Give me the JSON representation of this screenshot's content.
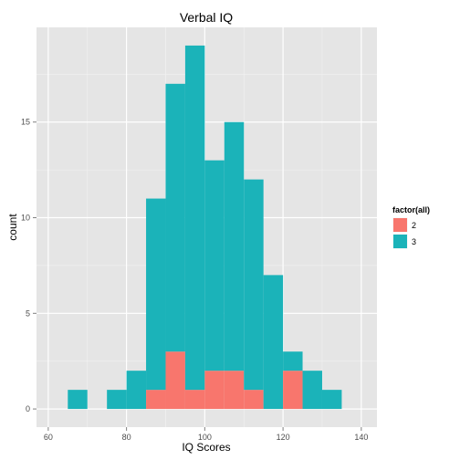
{
  "chart_data": {
    "type": "bar",
    "title": "Verbal IQ",
    "xlabel": "IQ Scores",
    "ylabel": "count",
    "xlim": [
      57,
      144
    ],
    "ylim": [
      -0.95,
      19.95
    ],
    "x_ticks": [
      60,
      80,
      100,
      120,
      140
    ],
    "y_ticks": [
      0,
      5,
      10,
      15
    ],
    "bin_width": 5,
    "bin_starts": [
      65,
      70,
      75,
      80,
      85,
      90,
      95,
      100,
      105,
      110,
      115,
      120,
      125,
      130
    ],
    "stacked": true,
    "grid": true,
    "legend": {
      "title": "factor(all)",
      "position": "right"
    },
    "series": [
      {
        "name": "2",
        "color": "#F8766D",
        "values": [
          0,
          0,
          0,
          0,
          1,
          3,
          1,
          2,
          2,
          1,
          0,
          2,
          0,
          0
        ]
      },
      {
        "name": "3",
        "color": "#1BB3B9",
        "values": [
          1,
          0,
          1,
          2,
          10,
          14,
          18,
          11,
          13,
          11,
          7,
          1,
          2,
          1
        ]
      }
    ],
    "colors": {
      "panel_background": "#E5E5E5",
      "grid_major": "#FFFFFF",
      "grid_minor": "#F2F2F2"
    }
  }
}
